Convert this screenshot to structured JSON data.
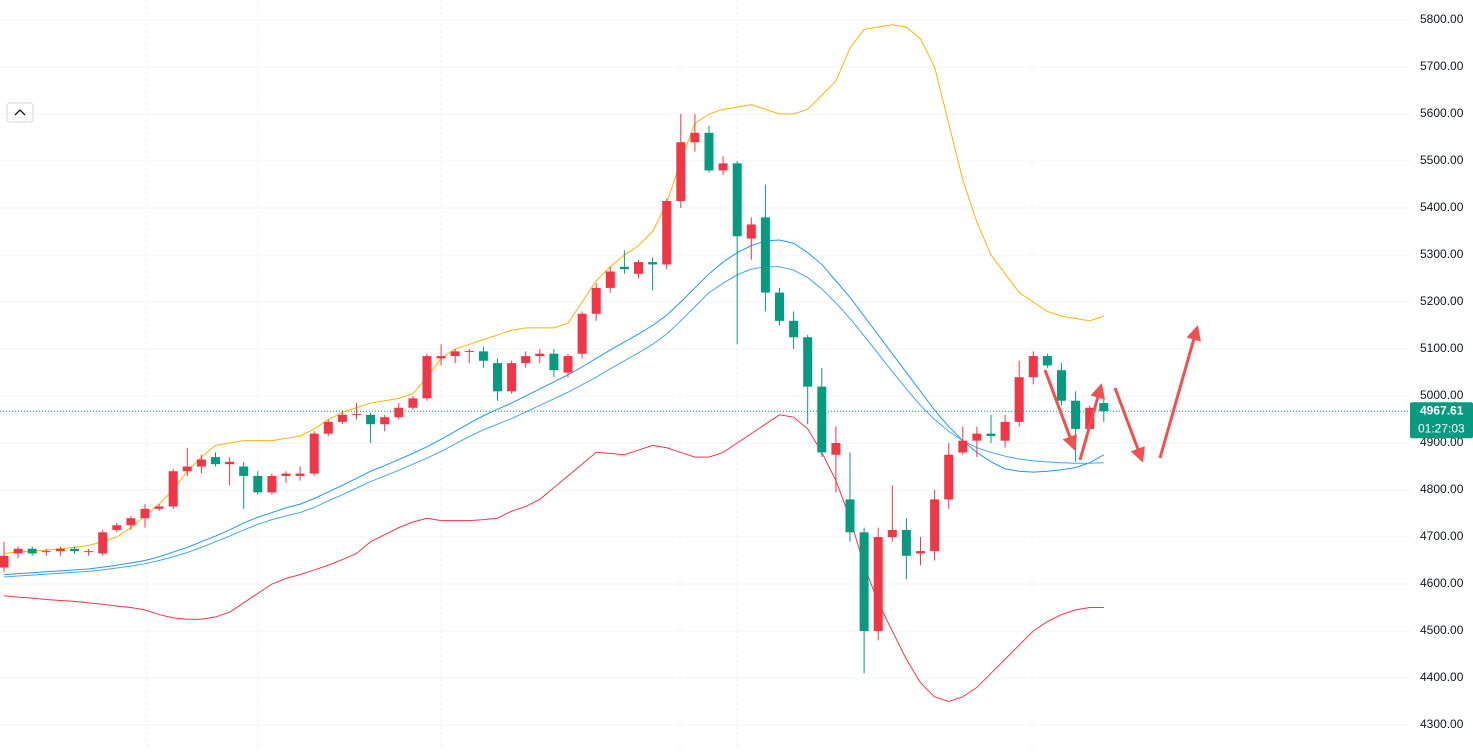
{
  "chart_data": {
    "type": "candlestick",
    "up_color": "#f23645",
    "down_color": "#089981",
    "open": [
      4635,
      4665,
      4675,
      4668,
      4670,
      4675,
      4668,
      4665,
      4715,
      4725,
      4740,
      4760,
      4765,
      4840,
      4850,
      4870,
      4855,
      4850,
      4830,
      4795,
      4830,
      4830,
      4835,
      4920,
      4945,
      4960,
      4960,
      4940,
      4955,
      4975,
      4995,
      5080,
      5085,
      5095,
      5095,
      5070,
      5010,
      5070,
      5085,
      5090,
      5050,
      5090,
      5175,
      5230,
      5275,
      5260,
      5285,
      5280,
      5415,
      5540,
      5560,
      5480,
      5495,
      5335,
      5380,
      5220,
      5160,
      5125,
      5020,
      4875,
      4780,
      4710,
      4500,
      4700,
      4715,
      4665,
      4670,
      4780,
      4880,
      4905,
      4920,
      4905,
      4945,
      5040,
      5085,
      5055,
      4990,
      4930,
      4985
    ],
    "high": [
      4690,
      4680,
      4680,
      4675,
      4680,
      4680,
      4675,
      4715,
      4730,
      4745,
      4770,
      4770,
      4845,
      4890,
      4875,
      4880,
      4870,
      4860,
      4840,
      4835,
      4840,
      4850,
      4925,
      4950,
      4970,
      4985,
      4965,
      4960,
      4985,
      5000,
      5090,
      5110,
      5100,
      5100,
      5105,
      5080,
      5075,
      5095,
      5100,
      5100,
      5090,
      5180,
      5240,
      5275,
      5310,
      5290,
      5295,
      5420,
      5600,
      5600,
      5575,
      5510,
      5500,
      5380,
      5450,
      5230,
      5180,
      5130,
      5060,
      4935,
      4880,
      4720,
      4720,
      4810,
      4740,
      4700,
      4800,
      4900,
      4935,
      4935,
      4960,
      4960,
      5075,
      5095,
      5090,
      5070,
      5010,
      4980,
      5000
    ],
    "low": [
      4625,
      4655,
      4660,
      4660,
      4660,
      4665,
      4660,
      4660,
      4710,
      4715,
      4720,
      4755,
      4760,
      4830,
      4835,
      4850,
      4810,
      4760,
      4790,
      4790,
      4815,
      4820,
      4830,
      4915,
      4940,
      4950,
      4900,
      4925,
      4950,
      4970,
      4990,
      5065,
      5070,
      5070,
      5060,
      4990,
      5005,
      5060,
      5070,
      5040,
      5040,
      5080,
      5160,
      5220,
      5260,
      5250,
      5225,
      5270,
      5400,
      5520,
      5475,
      5470,
      5110,
      5290,
      5180,
      5150,
      5100,
      4940,
      4870,
      4795,
      4690,
      4410,
      4480,
      4690,
      4610,
      4640,
      4650,
      4760,
      4875,
      4870,
      4900,
      4890,
      4935,
      5025,
      5060,
      4980,
      4860,
      4930,
      4945
    ],
    "close": [
      4660,
      4675,
      4665,
      4670,
      4675,
      4670,
      4670,
      4710,
      4725,
      4740,
      4760,
      4765,
      4840,
      4850,
      4865,
      4855,
      4860,
      4830,
      4795,
      4830,
      4835,
      4835,
      4920,
      4945,
      4960,
      4962,
      4940,
      4955,
      4975,
      4995,
      5085,
      5085,
      5095,
      5096,
      5075,
      5010,
      5070,
      5085,
      5090,
      5055,
      5085,
      5175,
      5230,
      5265,
      5270,
      5285,
      5280,
      5415,
      5540,
      5560,
      5480,
      5495,
      5340,
      5365,
      5220,
      5160,
      5125,
      5020,
      4880,
      4900,
      4710,
      4500,
      4700,
      4715,
      4660,
      4670,
      4780,
      4875,
      4905,
      4920,
      4915,
      4945,
      5040,
      5085,
      5065,
      4990,
      4930,
      4975,
      4967.61
    ],
    "series": [
      {
        "color": "#f7b500",
        "values": [
          4665,
          4668,
          4670,
          4672,
          4675,
          4678,
          4682,
          4690,
          4700,
          4720,
          4745,
          4770,
          4800,
          4840,
          4870,
          4895,
          4900,
          4905,
          4905,
          4905,
          4910,
          4915,
          4930,
          4950,
          4965,
          4975,
          4985,
          4990,
          4995,
          5005,
          5040,
          5080,
          5100,
          5110,
          5120,
          5130,
          5140,
          5145,
          5145,
          5145,
          5155,
          5200,
          5245,
          5275,
          5300,
          5320,
          5350,
          5410,
          5500,
          5580,
          5600,
          5610,
          5615,
          5620,
          5610,
          5600,
          5600,
          5610,
          5640,
          5670,
          5740,
          5780,
          5785,
          5790,
          5785,
          5760,
          5700,
          5580,
          5460,
          5370,
          5300,
          5260,
          5220,
          5200,
          5180,
          5170,
          5165,
          5160,
          5170
        ]
      },
      {
        "color": "#f23645",
        "values": [
          4575,
          4572,
          4570,
          4567,
          4565,
          4563,
          4560,
          4557,
          4553,
          4550,
          4545,
          4535,
          4528,
          4525,
          4525,
          4530,
          4540,
          4560,
          4580,
          4600,
          4612,
          4620,
          4630,
          4640,
          4652,
          4665,
          4690,
          4705,
          4720,
          4732,
          4740,
          4735,
          4735,
          4735,
          4737,
          4740,
          4755,
          4765,
          4780,
          4805,
          4830,
          4855,
          4880,
          4878,
          4875,
          4885,
          4895,
          4890,
          4880,
          4870,
          4870,
          4880,
          4900,
          4920,
          4940,
          4960,
          4955,
          4930,
          4880,
          4820,
          4740,
          4640,
          4560,
          4500,
          4440,
          4390,
          4360,
          4350,
          4360,
          4380,
          4410,
          4440,
          4470,
          4500,
          4520,
          4535,
          4545,
          4550,
          4550
        ]
      },
      {
        "color": "#2196f3",
        "values": [
          4620,
          4622,
          4624,
          4626,
          4628,
          4630,
          4632,
          4636,
          4640,
          4645,
          4650,
          4658,
          4668,
          4678,
          4690,
          4702,
          4715,
          4730,
          4742,
          4752,
          4762,
          4770,
          4782,
          4796,
          4810,
          4825,
          4840,
          4852,
          4865,
          4878,
          4892,
          4908,
          4925,
          4942,
          4958,
          4972,
          4985,
          5000,
          5015,
          5030,
          5045,
          5062,
          5080,
          5098,
          5115,
          5132,
          5150,
          5172,
          5200,
          5230,
          5260,
          5285,
          5305,
          5320,
          5330,
          5332,
          5325,
          5305,
          5280,
          5245,
          5210,
          5170,
          5130,
          5090,
          5050,
          5010,
          4970,
          4935,
          4905,
          4880,
          4860,
          4845,
          4840,
          4838,
          4840,
          4843,
          4848,
          4858,
          4875
        ]
      },
      {
        "color": "#42a5f5",
        "values": [
          4615,
          4617,
          4619,
          4621,
          4623,
          4625,
          4627,
          4630,
          4634,
          4638,
          4643,
          4650,
          4658,
          4667,
          4678,
          4690,
          4702,
          4715,
          4727,
          4737,
          4745,
          4752,
          4763,
          4777,
          4790,
          4804,
          4818,
          4830,
          4842,
          4855,
          4868,
          4882,
          4898,
          4914,
          4928,
          4940,
          4952,
          4966,
          4980,
          4994,
          5008,
          5024,
          5040,
          5058,
          5075,
          5092,
          5110,
          5132,
          5160,
          5190,
          5220,
          5240,
          5258,
          5270,
          5275,
          5275,
          5268,
          5252,
          5228,
          5198,
          5165,
          5128,
          5090,
          5052,
          5015,
          4980,
          4950,
          4925,
          4905,
          4890,
          4880,
          4872,
          4866,
          4862,
          4860,
          4858,
          4857,
          4857,
          4858
        ]
      }
    ],
    "ylim": [
      4251.1,
      5842.6
    ],
    "yticks": [
      {
        "value": 4300,
        "label": "4300.00"
      },
      {
        "value": 4400,
        "label": "4400.00"
      },
      {
        "value": 4500,
        "label": "4500.00"
      },
      {
        "value": 4600,
        "label": "4600.00"
      },
      {
        "value": 4700,
        "label": "4700.00"
      },
      {
        "value": 4800,
        "label": "4800.00"
      },
      {
        "value": 4900,
        "label": "4900.00"
      },
      {
        "value": 5000,
        "label": "5000.00"
      },
      {
        "value": 5100,
        "label": "5100.00"
      },
      {
        "value": 5200,
        "label": "5200.00"
      },
      {
        "value": 5300,
        "label": "5300.00"
      },
      {
        "value": 5400,
        "label": "5400.00"
      },
      {
        "value": 5500,
        "label": "5500.00"
      },
      {
        "value": 5600,
        "label": "5600.00"
      },
      {
        "value": 5700,
        "label": "5700.00"
      },
      {
        "value": 5800,
        "label": "5800.00"
      }
    ],
    "grid": true,
    "last_price": {
      "value": 4967.61,
      "label": "4967.61"
    },
    "countdown": "01:27:03"
  }
}
